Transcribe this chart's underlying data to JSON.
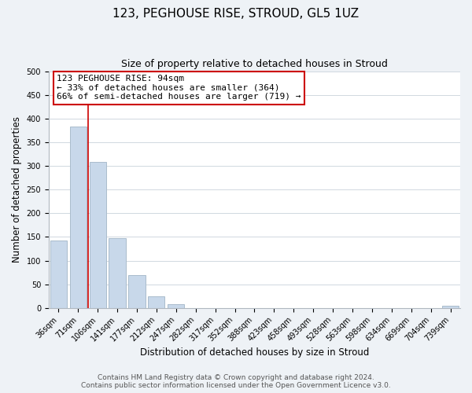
{
  "title": "123, PEGHOUSE RISE, STROUD, GL5 1UZ",
  "subtitle": "Size of property relative to detached houses in Stroud",
  "xlabel": "Distribution of detached houses by size in Stroud",
  "ylabel": "Number of detached properties",
  "bar_labels": [
    "36sqm",
    "71sqm",
    "106sqm",
    "141sqm",
    "177sqm",
    "212sqm",
    "247sqm",
    "282sqm",
    "317sqm",
    "352sqm",
    "388sqm",
    "423sqm",
    "458sqm",
    "493sqm",
    "528sqm",
    "563sqm",
    "598sqm",
    "634sqm",
    "669sqm",
    "704sqm",
    "739sqm"
  ],
  "bar_values": [
    143,
    383,
    308,
    148,
    70,
    24,
    8,
    0,
    0,
    0,
    0,
    0,
    0,
    0,
    0,
    0,
    0,
    0,
    0,
    0,
    4
  ],
  "bar_color": "#c8d8ea",
  "bar_edge_color": "#aabccc",
  "vline_x": 1.5,
  "vline_color": "#cc0000",
  "annotation_text": "123 PEGHOUSE RISE: 94sqm\n← 33% of detached houses are smaller (364)\n66% of semi-detached houses are larger (719) →",
  "annotation_box_edgecolor": "#cc0000",
  "annotation_box_facecolor": "#ffffff",
  "ylim": [
    0,
    500
  ],
  "yticks": [
    0,
    50,
    100,
    150,
    200,
    250,
    300,
    350,
    400,
    450,
    500
  ],
  "footer_line1": "Contains HM Land Registry data © Crown copyright and database right 2024.",
  "footer_line2": "Contains public sector information licensed under the Open Government Licence v3.0.",
  "background_color": "#eef2f6",
  "plot_background_color": "#ffffff",
  "grid_color": "#d0d8e0",
  "title_fontsize": 11,
  "subtitle_fontsize": 9,
  "axis_label_fontsize": 8.5,
  "tick_fontsize": 7,
  "footer_fontsize": 6.5,
  "annotation_fontsize": 8
}
